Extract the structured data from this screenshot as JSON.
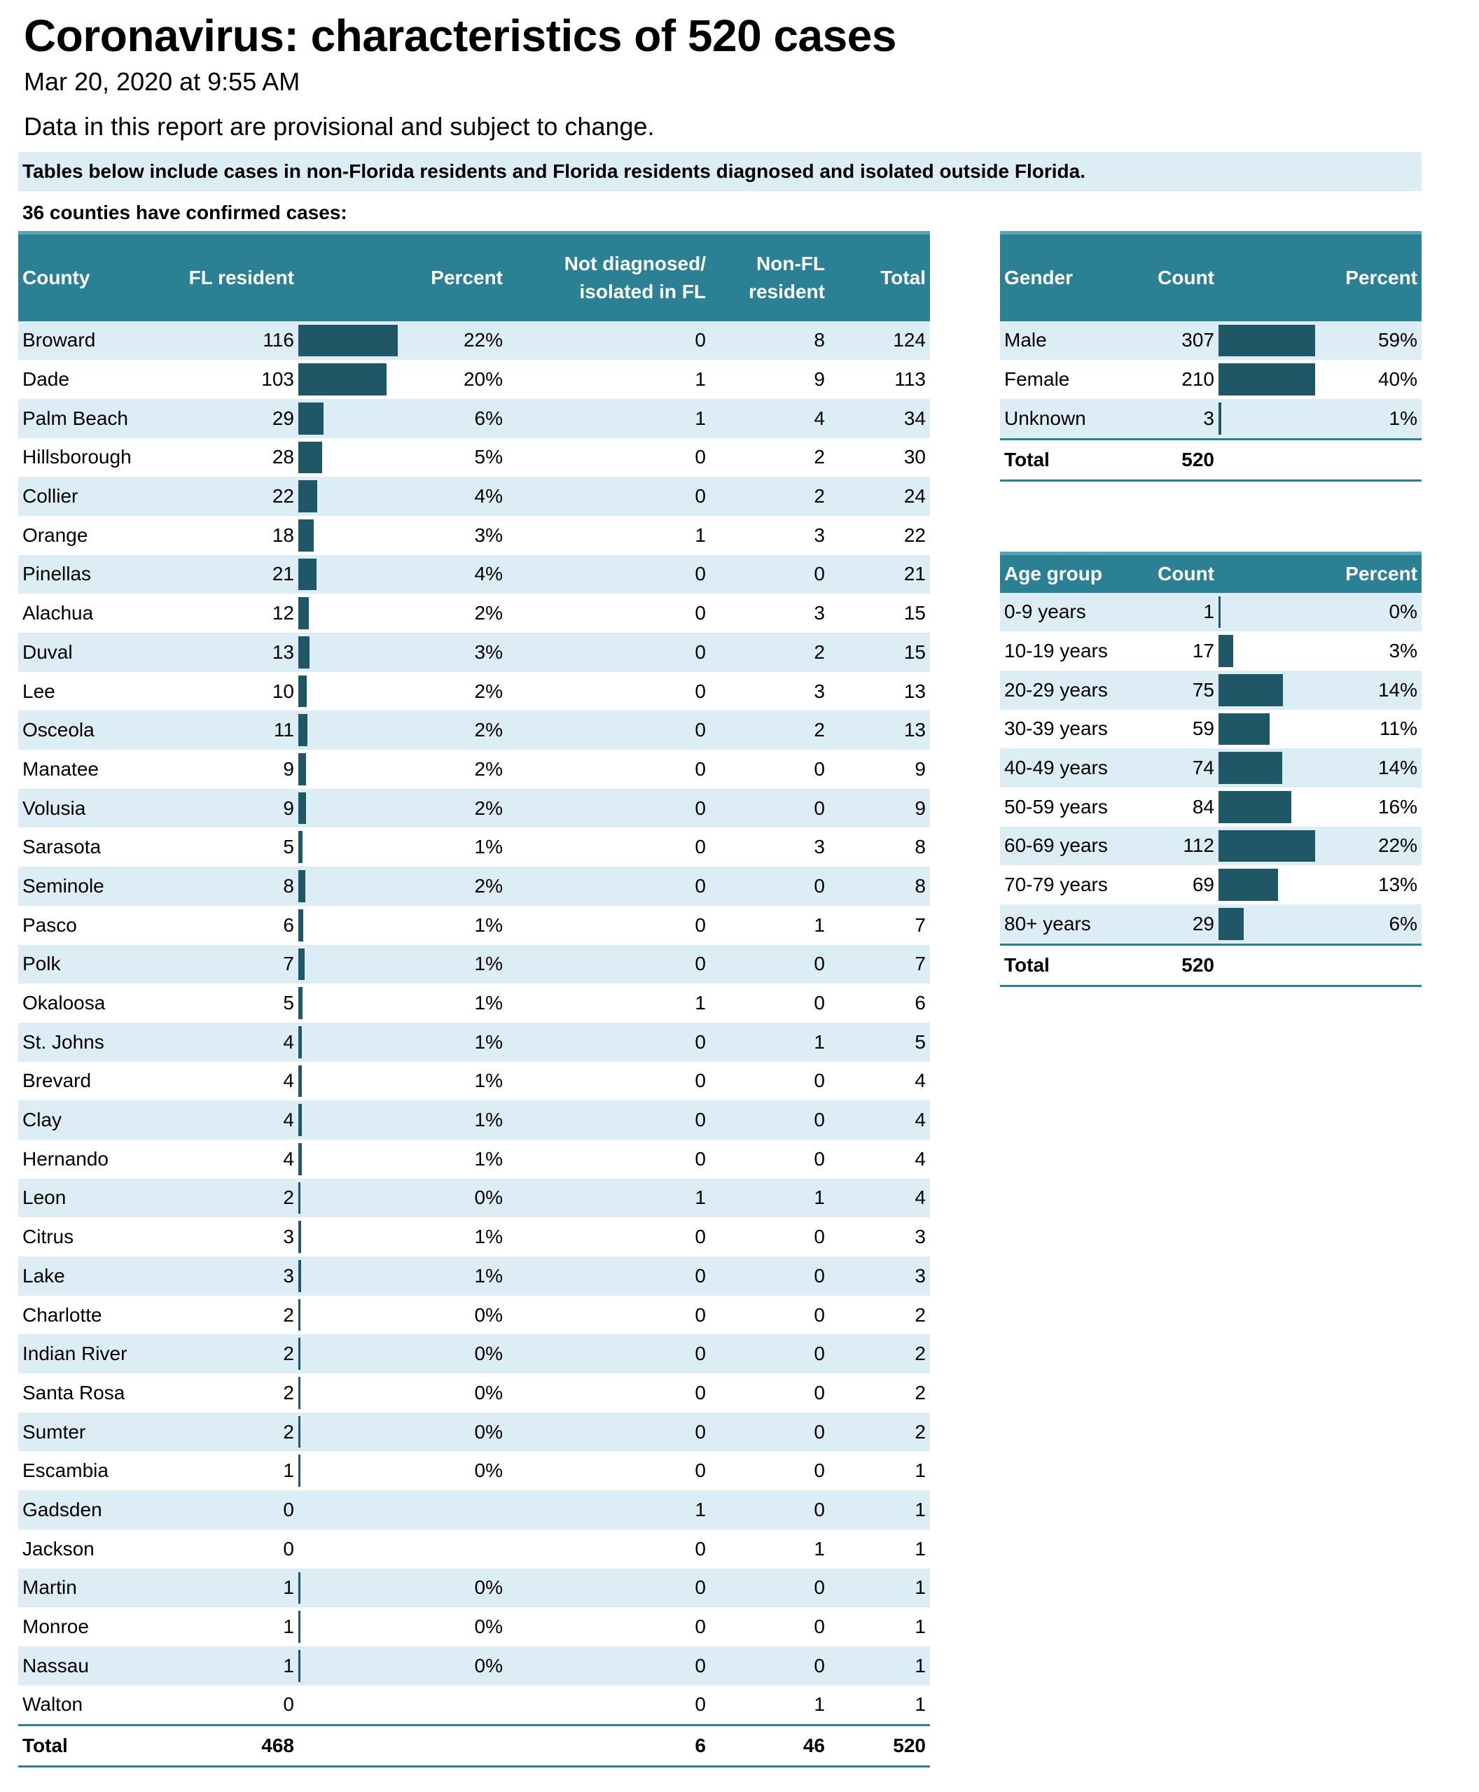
{
  "title": "Coronavirus: characteristics of 520 cases",
  "datetime": "Mar 20, 2020 at 9:55 AM",
  "disclaimer": "Data in this report are provisional and subject to change.",
  "note": "Tables below include cases in non-Florida residents and Florida residents diagnosed and isolated outside Florida.",
  "counties_note": "36 counties have confirmed cases:",
  "bar_color": "#1f5766",
  "header_color": "#2c8094",
  "stripe_color": "#dcedf5",
  "county_table": {
    "headers": {
      "county": "County",
      "fl_resident": "FL resident",
      "percent": "Percent",
      "not_diag_1": "Not diagnosed/",
      "not_diag_2": "isolated in FL",
      "non_fl_1": "Non-FL",
      "non_fl_2": "resident",
      "total": "Total"
    },
    "max_fl": 116,
    "rows": [
      {
        "county": "Broward",
        "fl": "116",
        "pct": "22%",
        "not_diag": "0",
        "non_fl": "8",
        "total": "124"
      },
      {
        "county": "Dade",
        "fl": "103",
        "pct": "20%",
        "not_diag": "1",
        "non_fl": "9",
        "total": "113"
      },
      {
        "county": "Palm Beach",
        "fl": "29",
        "pct": "6%",
        "not_diag": "1",
        "non_fl": "4",
        "total": "34"
      },
      {
        "county": "Hillsborough",
        "fl": "28",
        "pct": "5%",
        "not_diag": "0",
        "non_fl": "2",
        "total": "30"
      },
      {
        "county": "Collier",
        "fl": "22",
        "pct": "4%",
        "not_diag": "0",
        "non_fl": "2",
        "total": "24"
      },
      {
        "county": "Orange",
        "fl": "18",
        "pct": "3%",
        "not_diag": "1",
        "non_fl": "3",
        "total": "22"
      },
      {
        "county": "Pinellas",
        "fl": "21",
        "pct": "4%",
        "not_diag": "0",
        "non_fl": "0",
        "total": "21"
      },
      {
        "county": "Alachua",
        "fl": "12",
        "pct": "2%",
        "not_diag": "0",
        "non_fl": "3",
        "total": "15"
      },
      {
        "county": "Duval",
        "fl": "13",
        "pct": "3%",
        "not_diag": "0",
        "non_fl": "2",
        "total": "15"
      },
      {
        "county": "Lee",
        "fl": "10",
        "pct": "2%",
        "not_diag": "0",
        "non_fl": "3",
        "total": "13"
      },
      {
        "county": "Osceola",
        "fl": "11",
        "pct": "2%",
        "not_diag": "0",
        "non_fl": "2",
        "total": "13"
      },
      {
        "county": "Manatee",
        "fl": "9",
        "pct": "2%",
        "not_diag": "0",
        "non_fl": "0",
        "total": "9"
      },
      {
        "county": "Volusia",
        "fl": "9",
        "pct": "2%",
        "not_diag": "0",
        "non_fl": "0",
        "total": "9"
      },
      {
        "county": "Sarasota",
        "fl": "5",
        "pct": "1%",
        "not_diag": "0",
        "non_fl": "3",
        "total": "8"
      },
      {
        "county": "Seminole",
        "fl": "8",
        "pct": "2%",
        "not_diag": "0",
        "non_fl": "0",
        "total": "8"
      },
      {
        "county": "Pasco",
        "fl": "6",
        "pct": "1%",
        "not_diag": "0",
        "non_fl": "1",
        "total": "7"
      },
      {
        "county": "Polk",
        "fl": "7",
        "pct": "1%",
        "not_diag": "0",
        "non_fl": "0",
        "total": "7"
      },
      {
        "county": "Okaloosa",
        "fl": "5",
        "pct": "1%",
        "not_diag": "1",
        "non_fl": "0",
        "total": "6"
      },
      {
        "county": "St. Johns",
        "fl": "4",
        "pct": "1%",
        "not_diag": "0",
        "non_fl": "1",
        "total": "5"
      },
      {
        "county": "Brevard",
        "fl": "4",
        "pct": "1%",
        "not_diag": "0",
        "non_fl": "0",
        "total": "4"
      },
      {
        "county": "Clay",
        "fl": "4",
        "pct": "1%",
        "not_diag": "0",
        "non_fl": "0",
        "total": "4"
      },
      {
        "county": "Hernando",
        "fl": "4",
        "pct": "1%",
        "not_diag": "0",
        "non_fl": "0",
        "total": "4"
      },
      {
        "county": "Leon",
        "fl": "2",
        "pct": "0%",
        "not_diag": "1",
        "non_fl": "1",
        "total": "4"
      },
      {
        "county": "Citrus",
        "fl": "3",
        "pct": "1%",
        "not_diag": "0",
        "non_fl": "0",
        "total": "3"
      },
      {
        "county": "Lake",
        "fl": "3",
        "pct": "1%",
        "not_diag": "0",
        "non_fl": "0",
        "total": "3"
      },
      {
        "county": "Charlotte",
        "fl": "2",
        "pct": "0%",
        "not_diag": "0",
        "non_fl": "0",
        "total": "2"
      },
      {
        "county": "Indian River",
        "fl": "2",
        "pct": "0%",
        "not_diag": "0",
        "non_fl": "0",
        "total": "2"
      },
      {
        "county": "Santa Rosa",
        "fl": "2",
        "pct": "0%",
        "not_diag": "0",
        "non_fl": "0",
        "total": "2"
      },
      {
        "county": "Sumter",
        "fl": "2",
        "pct": "0%",
        "not_diag": "0",
        "non_fl": "0",
        "total": "2"
      },
      {
        "county": "Escambia",
        "fl": "1",
        "pct": "0%",
        "not_diag": "0",
        "non_fl": "0",
        "total": "1"
      },
      {
        "county": "Gadsden",
        "fl": "0",
        "pct": "",
        "not_diag": "1",
        "non_fl": "0",
        "total": "1"
      },
      {
        "county": "Jackson",
        "fl": "0",
        "pct": "",
        "not_diag": "0",
        "non_fl": "1",
        "total": "1"
      },
      {
        "county": "Martin",
        "fl": "1",
        "pct": "0%",
        "not_diag": "0",
        "non_fl": "0",
        "total": "1"
      },
      {
        "county": "Monroe",
        "fl": "1",
        "pct": "0%",
        "not_diag": "0",
        "non_fl": "0",
        "total": "1"
      },
      {
        "county": "Nassau",
        "fl": "1",
        "pct": "0%",
        "not_diag": "0",
        "non_fl": "0",
        "total": "1"
      },
      {
        "county": "Walton",
        "fl": "0",
        "pct": "",
        "not_diag": "0",
        "non_fl": "1",
        "total": "1"
      }
    ],
    "total": {
      "label": "Total",
      "fl": "468",
      "not_diag": "6",
      "non_fl": "46",
      "total": "520"
    }
  },
  "gender_table": {
    "headers": {
      "gender": "Gender",
      "count": "Count",
      "percent": "Percent"
    },
    "max_count": 112,
    "rows": [
      {
        "label": "Male",
        "count": "307",
        "pct": "59%"
      },
      {
        "label": "Female",
        "count": "210",
        "pct": "40%"
      },
      {
        "label": "Unknown",
        "count": "3",
        "pct": "1%"
      }
    ],
    "total": {
      "label": "Total",
      "count": "520"
    }
  },
  "age_table": {
    "headers": {
      "age": "Age group",
      "count": "Count",
      "percent": "Percent"
    },
    "max_count": 112,
    "rows": [
      {
        "label": "0-9 years",
        "count": "1",
        "pct": "0%"
      },
      {
        "label": "10-19 years",
        "count": "17",
        "pct": "3%"
      },
      {
        "label": "20-29 years",
        "count": "75",
        "pct": "14%"
      },
      {
        "label": "30-39 years",
        "count": "59",
        "pct": "11%"
      },
      {
        "label": "40-49 years",
        "count": "74",
        "pct": "14%"
      },
      {
        "label": "50-59 years",
        "count": "84",
        "pct": "16%"
      },
      {
        "label": "60-69 years",
        "count": "112",
        "pct": "22%"
      },
      {
        "label": "70-79 years",
        "count": "69",
        "pct": "13%"
      },
      {
        "label": "80+ years",
        "count": "29",
        "pct": "6%"
      }
    ],
    "total": {
      "label": "Total",
      "count": "520"
    }
  }
}
